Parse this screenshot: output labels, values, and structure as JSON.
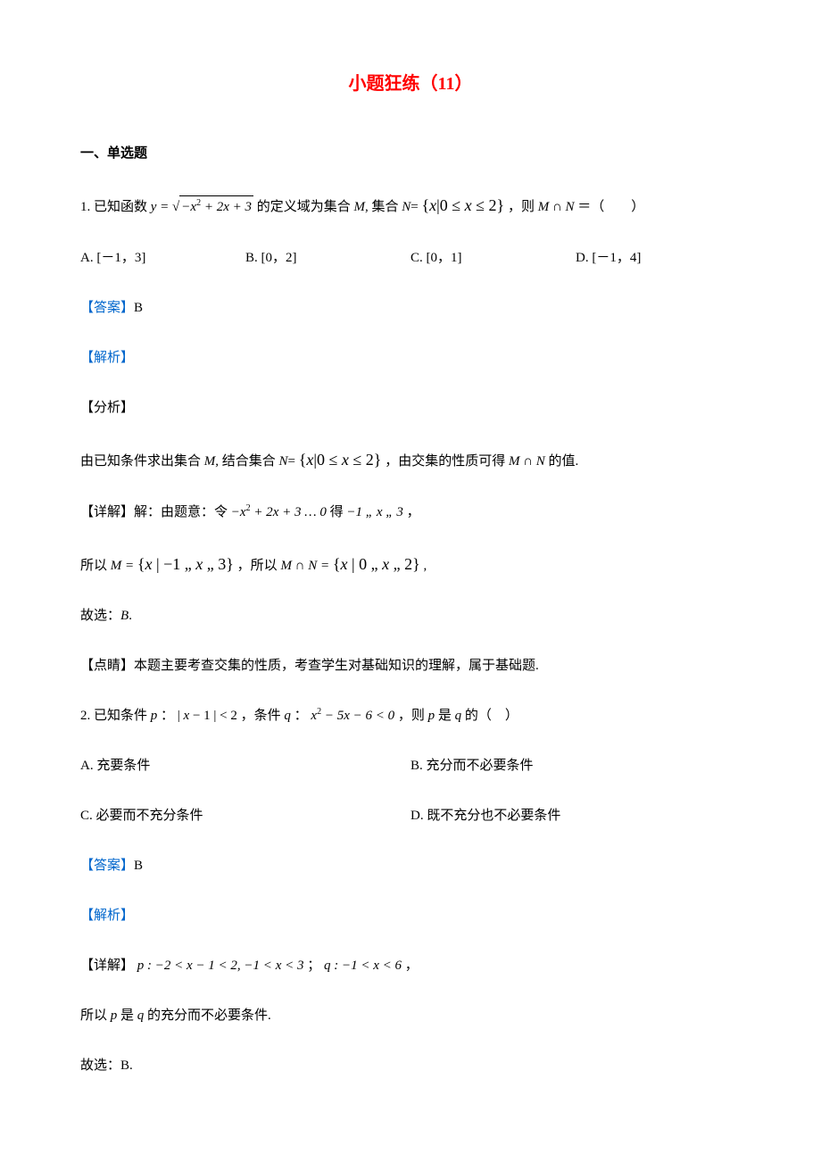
{
  "title": "小题狂练（11）",
  "section_heading": "一、单选题",
  "q1": {
    "stem_prefix": "1.  已知函数 ",
    "stem_mid1": " 的定义域为集合 ",
    "stem_M": "M",
    "stem_comma": ",  集合 ",
    "stem_N": "N",
    "stem_eq": "= ",
    "stem_set": "{ x | 0 ≤ x ≤ 2 }",
    "stem_mid2": "，则 ",
    "stem_MN": "M ∩ N",
    "stem_end": " ＝（　　）",
    "y_eq": "y = ",
    "sqrt_content": "−x² + 2x + 3",
    "options": {
      "A": "A.  [－1，3]",
      "B": "B.  [0，2]",
      "C": "C.  [0，1]",
      "D": "D.  [－1，4]"
    },
    "answer_label": "【答案】",
    "answer": "B",
    "jiexi": "【解析】",
    "fenxi": "【分析】",
    "analysis_prefix": "由已知条件求出集合 ",
    "analysis_mid1": ",  结合集合 ",
    "analysis_set": "{ x | 0 ≤ x ≤ 2 }",
    "analysis_mid2": "，由交集的性质可得 ",
    "analysis_end": " 的值.",
    "detail_label": "【详解】解：由题意：令 ",
    "detail_expr1": "−x² + 2x + 3 … 0",
    "detail_mid1": " 得 ",
    "detail_expr2": "−1 „ x „ 3",
    "detail_end1": " ，",
    "line2_prefix": "所以 ",
    "line2_M_eq": "M = ",
    "line2_set1": "{ x | −1 „ x „ 3 }",
    "line2_mid": "，所以 ",
    "line2_MN_eq": "M ∩ N = ",
    "line2_set2": "{ x | 0 „ x „ 2 }",
    "line2_end": " ,",
    "conclusion": "故选：",
    "conclusion_ans": "B",
    "conclusion_dot": ".",
    "dianjing_label": "【点睛】",
    "dianjing": "本题主要考查交集的性质，考查学生对基础知识的理解，属于基础题."
  },
  "q2": {
    "stem_prefix": "2.  已知条件 ",
    "p": "p",
    "colon1": " ：",
    "cond_p": "| x − 1 | < 2",
    "mid1": "，条件 ",
    "q": "q",
    "colon2": "：",
    "cond_q": "x² − 5x − 6 < 0",
    "mid2": "，则 ",
    "mid3": " 是 ",
    "end": " 的（　）",
    "options": {
      "A": "A.  充要条件",
      "B": "B.  充分而不必要条件",
      "C": "C.  必要而不充分条件",
      "D": "D.  既不充分也不必要条件"
    },
    "answer_label": "【答案】",
    "answer": "B",
    "jiexi": "【解析】",
    "detail_label": "【详解】",
    "detail_p": "p : −2 < x − 1 < 2, −1 < x < 3",
    "detail_sep": "； ",
    "detail_q": "q : −1 < x < 6",
    "detail_end": " ，",
    "line2_prefix": "所以 ",
    "line2_mid": " 是 ",
    "line2_end": " 的充分而不必要条件.",
    "conclusion": "故选：B."
  },
  "colors": {
    "title": "#ff0000",
    "label": "#0066cc",
    "text": "#000000",
    "background": "#ffffff"
  }
}
